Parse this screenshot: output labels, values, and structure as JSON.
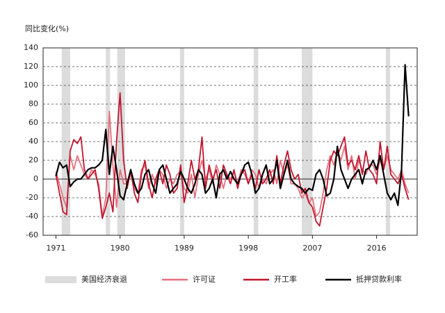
{
  "chart_data": {
    "type": "line",
    "y_label": "同比变化(%)",
    "x": [
      1971,
      1971.5,
      1972,
      1972.5,
      1973,
      1973.5,
      1974,
      1974.5,
      1975,
      1975.5,
      1976,
      1976.5,
      1977,
      1977.5,
      1978,
      1978.5,
      1979,
      1979.5,
      1980,
      1980.5,
      1981,
      1981.5,
      1982,
      1982.5,
      1983,
      1983.5,
      1984,
      1984.5,
      1985,
      1985.5,
      1986,
      1986.5,
      1987,
      1987.5,
      1988,
      1988.5,
      1989,
      1989.5,
      1990,
      1990.5,
      1991,
      1991.5,
      1992,
      1992.5,
      1993,
      1993.5,
      1994,
      1994.5,
      1995,
      1995.5,
      1996,
      1996.5,
      1997,
      1997.5,
      1998,
      1998.5,
      1999,
      1999.5,
      2000,
      2000.5,
      2001,
      2001.5,
      2002,
      2002.5,
      2003,
      2003.5,
      2004,
      2004.5,
      2005,
      2005.5,
      2006,
      2006.5,
      2007,
      2007.5,
      2008,
      2008.5,
      2009,
      2009.5,
      2010,
      2010.5,
      2011,
      2011.5,
      2012,
      2012.5,
      2013,
      2013.5,
      2014,
      2014.5,
      2015,
      2015.5,
      2016,
      2016.5,
      2017,
      2017.5,
      2018,
      2018.5,
      2019,
      2019.5,
      2020,
      2020.5
    ],
    "xlim": [
      1969.2,
      2021.7
    ],
    "xticks": [
      1971,
      1980,
      1989,
      1998,
      2007,
      2016
    ],
    "ylim": [
      -60,
      140
    ],
    "yticks": [
      -60,
      -40,
      -20,
      0,
      20,
      40,
      60,
      80,
      100,
      120,
      140
    ],
    "grid": true,
    "recessions": {
      "name": "美国经济衰退",
      "color": "#dcdcdc",
      "periods": [
        [
          1971.8,
          1973.0
        ],
        [
          1978.0,
          1978.6
        ],
        [
          1979.6,
          1980.7
        ],
        [
          1988.4,
          1989.0
        ],
        [
          1998.75,
          1999.4
        ],
        [
          2005.5,
          2007.0
        ],
        [
          2017.3,
          2017.9
        ]
      ]
    },
    "series": [
      {
        "name": "许可证",
        "color": "#e5707d",
        "values": [
          8,
          -5,
          -20,
          -30,
          25,
          10,
          25,
          15,
          5,
          0,
          10,
          5,
          -5,
          -40,
          -20,
          72,
          15,
          -30,
          10,
          -5,
          -5,
          5,
          -10,
          -15,
          10,
          15,
          -10,
          5,
          -5,
          10,
          5,
          -10,
          0,
          -5,
          5,
          8,
          -10,
          -15,
          5,
          -20,
          5,
          20,
          0,
          10,
          -5,
          15,
          5,
          -10,
          5,
          0,
          8,
          -5,
          10,
          5,
          -5,
          10,
          5,
          -10,
          0,
          -5,
          5,
          10,
          -5,
          20,
          5,
          15,
          -5,
          -5,
          -10,
          -20,
          -15,
          -25,
          -20,
          -40,
          -35,
          -15,
          10,
          25,
          15,
          30,
          20,
          35,
          10,
          25,
          0,
          20,
          10,
          5,
          15,
          15,
          5,
          20,
          10,
          25,
          10,
          5,
          0,
          10,
          -5,
          -15
        ]
      },
      {
        "name": "开工率",
        "color": "#c0142e",
        "values": [
          5,
          -15,
          -35,
          -38,
          30,
          42,
          38,
          45,
          10,
          0,
          5,
          10,
          -10,
          -42,
          -30,
          -15,
          -35,
          40,
          92,
          20,
          -10,
          10,
          -15,
          -25,
          5,
          20,
          -5,
          -20,
          0,
          10,
          -5,
          15,
          5,
          -15,
          -10,
          15,
          -25,
          -5,
          20,
          0,
          10,
          45,
          -10,
          15,
          0,
          10,
          -10,
          15,
          5,
          -5,
          10,
          -10,
          5,
          10,
          -5,
          5,
          -10,
          10,
          -5,
          0,
          10,
          -5,
          25,
          -5,
          15,
          30,
          10,
          0,
          5,
          -15,
          -10,
          -25,
          -30,
          -45,
          -50,
          -30,
          -10,
          20,
          30,
          25,
          35,
          45,
          15,
          20,
          10,
          25,
          5,
          30,
          10,
          5,
          -5,
          40,
          10,
          35,
          5,
          0,
          -5,
          5,
          -10,
          -22
        ]
      },
      {
        "name": "抵押贷款利率",
        "color": "#000000",
        "values": [
          3,
          18,
          12,
          15,
          -8,
          -3,
          0,
          0,
          5,
          10,
          12,
          12,
          15,
          20,
          53,
          5,
          35,
          10,
          -18,
          -22,
          -5,
          10,
          -5,
          -15,
          -10,
          5,
          10,
          -5,
          -15,
          10,
          15,
          0,
          -15,
          -10,
          -5,
          8,
          0,
          -10,
          -15,
          -5,
          10,
          5,
          -15,
          -10,
          0,
          -20,
          5,
          10,
          0,
          8,
          0,
          -5,
          5,
          15,
          18,
          5,
          -15,
          -10,
          5,
          15,
          -5,
          0,
          20,
          -10,
          5,
          20,
          0,
          -5,
          -8,
          -10,
          -15,
          -10,
          -12,
          5,
          10,
          0,
          -18,
          -15,
          0,
          35,
          10,
          0,
          -10,
          0,
          5,
          10,
          -5,
          10,
          12,
          20,
          10,
          25,
          5,
          -15,
          -22,
          -15,
          -28,
          10,
          122,
          67
        ]
      }
    ]
  }
}
